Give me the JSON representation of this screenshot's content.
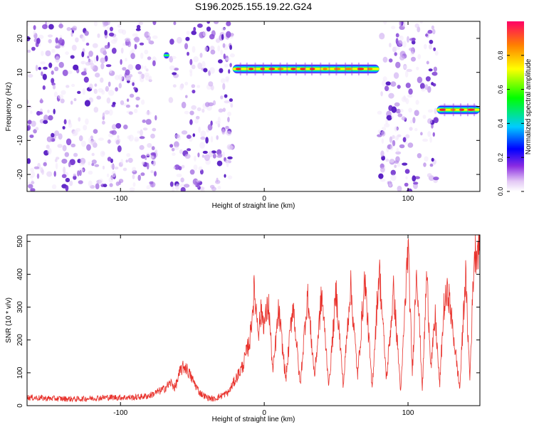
{
  "title": "S196.2025.155.19.22.G24",
  "chart_data": [
    {
      "type": "heatmap",
      "xlabel": "Height of straight line (km)",
      "ylabel": "Frequency (Hz)",
      "xlim": [
        -165,
        150
      ],
      "ylim": [
        -25,
        25
      ],
      "xticks": [
        -100,
        0,
        100
      ],
      "yticks": [
        -20,
        -10,
        0,
        10,
        20
      ],
      "colorbar": {
        "label": "Normalized spectral amplitude",
        "range": [
          0,
          1
        ],
        "ticks": [
          0.0,
          0.2,
          0.4,
          0.6,
          0.8
        ]
      },
      "noise_regions": [
        {
          "x": [
            -165,
            -75
          ]
        },
        {
          "x": [
            -65,
            -22
          ]
        },
        {
          "x": [
            80,
            120
          ]
        }
      ],
      "signal_tracks": [
        {
          "x": [
            -22,
            80
          ],
          "freq_hz": 11,
          "peak_amplitude": 0.95
        },
        {
          "x": [
            -70,
            -66
          ],
          "freq_hz": 15,
          "peak_amplitude": 0.5
        },
        {
          "x": [
            120,
            150
          ],
          "freq_hz": -1,
          "peak_amplitude": 0.9
        }
      ],
      "grid": false
    },
    {
      "type": "line",
      "xlabel": "Height of straight line (km)",
      "ylabel": "SNR (10 * v/v)",
      "xlim": [
        -165,
        150
      ],
      "ylim": [
        0,
        520
      ],
      "xticks": [
        -100,
        0,
        100
      ],
      "yticks": [
        0,
        100,
        200,
        300,
        400,
        500
      ],
      "color": "#e8302a",
      "series": [
        {
          "x": [
            -165,
            -150,
            -130,
            -110,
            -90,
            -80,
            -70,
            -65,
            -62,
            -58,
            -55,
            -50,
            -45,
            -40,
            -35,
            -30,
            -25,
            -20,
            -15,
            -10,
            -7,
            -4,
            -2,
            0,
            3,
            6,
            10,
            15,
            20,
            25,
            30,
            35,
            40,
            45,
            50,
            55,
            60,
            65,
            70,
            75,
            80,
            85,
            90,
            95,
            100,
            103,
            106,
            110,
            113,
            116,
            119,
            122,
            125,
            128,
            132,
            136,
            140,
            143,
            146,
            150
          ],
          "y": [
            25,
            22,
            20,
            25,
            25,
            30,
            50,
            70,
            55,
            110,
            120,
            80,
            40,
            25,
            20,
            30,
            40,
            80,
            120,
            200,
            350,
            230,
            290,
            250,
            310,
            100,
            290,
            80,
            315,
            60,
            340,
            90,
            340,
            60,
            350,
            60,
            370,
            90,
            390,
            50,
            420,
            80,
            350,
            40,
            490,
            100,
            430,
            50,
            400,
            120,
            270,
            60,
            300,
            350,
            200,
            50,
            400,
            80,
            460,
            500
          ]
        }
      ],
      "grid": false
    }
  ]
}
